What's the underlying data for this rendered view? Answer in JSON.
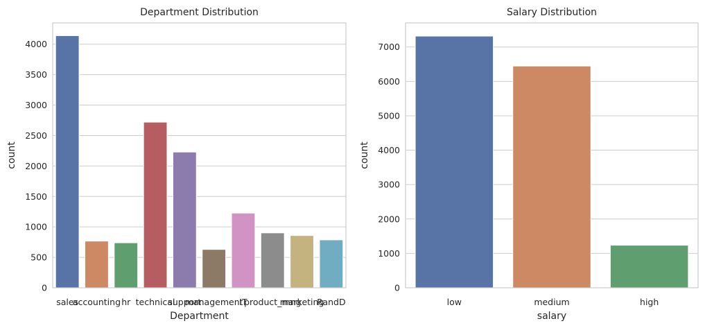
{
  "chart_data": [
    {
      "type": "bar",
      "title": "Department Distribution",
      "xlabel": "Department",
      "ylabel": "count",
      "ylim": [
        0,
        4350
      ],
      "yticks": [
        0,
        500,
        1000,
        1500,
        2000,
        2500,
        3000,
        3500,
        4000
      ],
      "grid": true,
      "categories": [
        "sales",
        "accounting",
        "hr",
        "technical",
        "support",
        "management",
        "IT",
        "product_mng",
        "marketing",
        "RandD"
      ],
      "values": [
        4140,
        767,
        739,
        2720,
        2229,
        630,
        1227,
        902,
        858,
        787
      ],
      "colors": [
        "#5874a6",
        "#cc8963",
        "#5f9e6e",
        "#b55d60",
        "#8c7cae",
        "#8c7a67",
        "#d193c3",
        "#8c8c8c",
        "#c4b37e",
        "#71adc2"
      ]
    },
    {
      "type": "bar",
      "title": "Salary Distribution",
      "xlabel": "salary",
      "ylabel": "count",
      "ylim": [
        0,
        7700
      ],
      "yticks": [
        0,
        1000,
        2000,
        3000,
        4000,
        5000,
        6000,
        7000
      ],
      "grid": true,
      "categories": [
        "low",
        "medium",
        "high"
      ],
      "values": [
        7316,
        6446,
        1237
      ],
      "colors": [
        "#5874a6",
        "#cc8963",
        "#5f9e6e"
      ]
    }
  ]
}
